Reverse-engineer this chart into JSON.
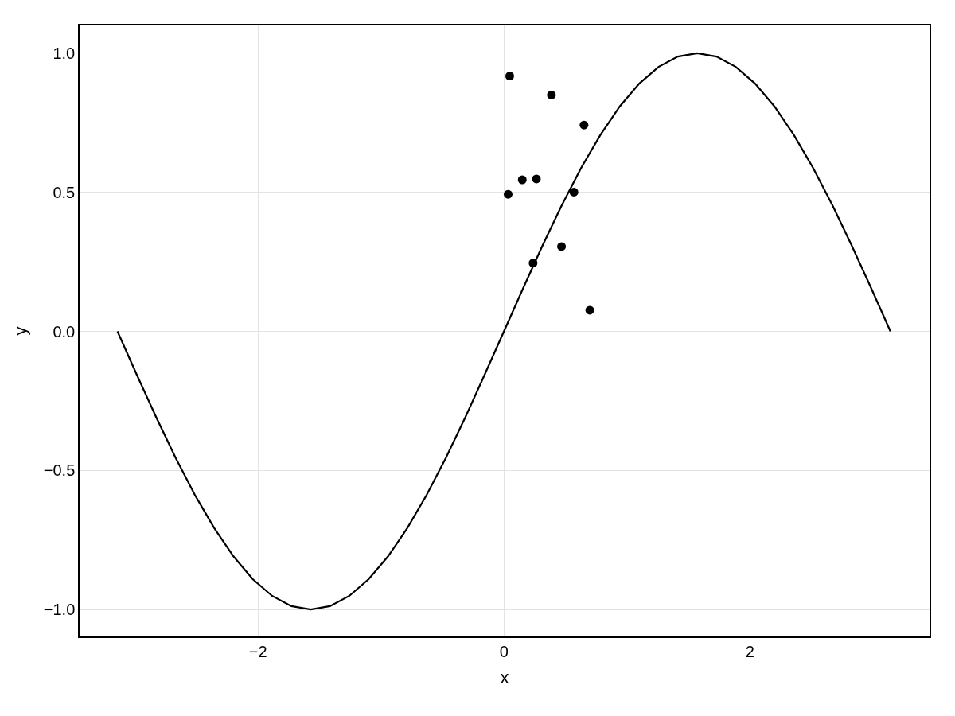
{
  "chart_data": {
    "type": "line",
    "xlabel": "x",
    "ylabel": "y",
    "xlim": [
      -3.45,
      3.46
    ],
    "ylim": [
      -1.097,
      1.1
    ],
    "xticks": [
      {
        "value": -2,
        "label": "−2"
      },
      0,
      2
    ],
    "yticks": [
      {
        "value": -1.0,
        "label": "−1.0"
      },
      {
        "value": -0.5,
        "label": "−0.5"
      },
      {
        "value": 0.0,
        "label": "0.0"
      },
      {
        "value": 0.5,
        "label": "0.5"
      },
      {
        "value": 1.0,
        "label": "1.0"
      }
    ],
    "grid": true,
    "series": [
      {
        "color": "#000000",
        "marker": "none",
        "line_style": "solid",
        "x": [
          -3.142,
          -2.985,
          -2.827,
          -2.67,
          -2.513,
          -2.356,
          -2.199,
          -2.042,
          -1.885,
          -1.728,
          -1.571,
          -1.414,
          -1.257,
          -1.1,
          -0.942,
          -0.785,
          -0.628,
          -0.471,
          -0.314,
          -0.157,
          0,
          0.157,
          0.314,
          0.471,
          0.628,
          0.785,
          0.942,
          1.1,
          1.257,
          1.414,
          1.571,
          1.728,
          1.885,
          2.042,
          2.199,
          2.356,
          2.513,
          2.67,
          2.827,
          2.985,
          3.142
        ],
        "values": [
          0,
          -0.156,
          -0.309,
          -0.454,
          -0.588,
          -0.707,
          -0.809,
          -0.891,
          -0.951,
          -0.988,
          -1.0,
          -0.988,
          -0.951,
          -0.891,
          -0.809,
          -0.707,
          -0.588,
          -0.454,
          -0.309,
          -0.156,
          0,
          0.156,
          0.309,
          0.454,
          0.588,
          0.707,
          0.809,
          0.891,
          0.951,
          0.988,
          1.0,
          0.988,
          0.951,
          0.891,
          0.809,
          0.707,
          0.588,
          0.454,
          0.309,
          0.156,
          0
        ]
      },
      {
        "type": "scatter",
        "color": "#000000",
        "marker": "circle",
        "x": [
          0.047,
          0.386,
          0.651,
          0.149,
          0.264,
          0.034,
          0.569,
          0.468,
          0.237,
          0.698
        ],
        "values": [
          0.918,
          0.85,
          0.742,
          0.545,
          0.548,
          0.493,
          0.501,
          0.305,
          0.246,
          0.076
        ]
      }
    ]
  }
}
